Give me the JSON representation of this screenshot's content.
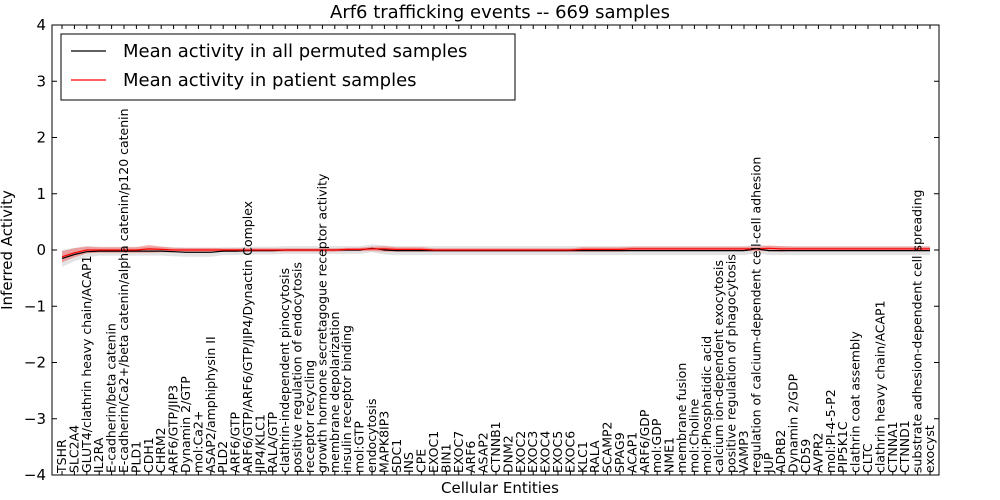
{
  "chart_data": {
    "type": "line",
    "title": "Arf6 trafficking events -- 669 samples",
    "xlabel": "Cellular Entities",
    "ylabel": "Inferred Activity",
    "ylim": [
      -4,
      4
    ],
    "yticks": [
      -4,
      -3,
      -2,
      -1,
      0,
      1,
      2,
      3,
      4
    ],
    "grid": false,
    "legend_position": "top-left",
    "categories": [
      "TSHR",
      "SLC2A4",
      "GLUT4/clathrin heavy chain/ACAP1",
      "IL2RA",
      "E-cadherin/beta catenin",
      "E-cadherin/Ca2+/beta catenin/alpha catenin/p120 catenin",
      "PLD1",
      "CDH1",
      "CHRM2",
      "ARF6/GTP/JIP3",
      "Dynamin 2/GTP",
      "mol:Ca2+",
      "ASAP2/amphiphysin II",
      "PLD2",
      "ARF6/GTP",
      "ARF6/GTP/ARF6/GTP/JIP4/Dynactin Complex",
      "JIP4/KLC1",
      "RALA/GTP",
      "clathrin-independent pinocytosis",
      "positive regulation of endocytosis",
      "receptor recycling",
      "growth hormone secretagogue receptor activity",
      "membrane depolarization",
      "insulin receptor binding",
      "mol:GTP",
      "endocytosis",
      "MAPK8IP3",
      "SDC1",
      "INS",
      "CPE",
      "EXOC1",
      "BIN1",
      "EXOC7",
      "ARF6",
      "ASAP2",
      "CTNNB1",
      "DNM2",
      "EXOC2",
      "EXOC3",
      "EXOC4",
      "EXOC5",
      "EXOC6",
      "KLC1",
      "RALA",
      "SCAMP2",
      "SPAG9",
      "ACAP1",
      "ARF6/GDP",
      "mol:GDP",
      "NME1",
      "membrane fusion",
      "mol:Choline",
      "mol:Phosphatidic acid",
      "calcium ion-dependent exocytosis",
      "positive regulation of phagocytosis",
      "VAMP3",
      "regulation of calcium-dependent cell-cell adhesion",
      "JUP",
      "ADRB2",
      "Dynamin 2/GDP",
      "CD59",
      "AVPR2",
      "mol:PI-4-5-P2",
      "PIP5K1C",
      "clathrin coat assembly",
      "CLTC",
      "clathrin heavy chain/ACAP1",
      "CTNNA1",
      "CTNND1",
      "substrate adhesion-dependent cell spreading",
      "exocyst"
    ],
    "series": [
      {
        "name": "Mean activity in all permuted samples",
        "color": "#000000",
        "values": [
          -0.15,
          -0.08,
          -0.03,
          -0.02,
          -0.02,
          -0.02,
          -0.02,
          -0.02,
          -0.02,
          -0.03,
          -0.04,
          -0.04,
          -0.04,
          -0.02,
          -0.02,
          -0.01,
          -0.01,
          -0.01,
          0,
          0,
          0,
          0,
          0,
          0,
          0,
          0.03,
          0,
          -0.01,
          -0.01,
          -0.01,
          -0.01,
          -0.01,
          -0.01,
          -0.01,
          -0.01,
          -0.01,
          -0.01,
          -0.01,
          -0.01,
          -0.01,
          -0.01,
          -0.01,
          -0.01,
          -0.01,
          -0.01,
          -0.01,
          -0.01,
          -0.01,
          -0.01,
          -0.01,
          -0.01,
          -0.01,
          -0.01,
          -0.01,
          -0.01,
          -0.01,
          0.02,
          -0.01,
          -0.01,
          -0.01,
          -0.01,
          -0.01,
          -0.01,
          -0.01,
          -0.01,
          -0.01,
          -0.01,
          -0.01,
          -0.01,
          -0.01,
          -0.01
        ],
        "band": [
          0.15,
          0.12,
          0.1,
          0.08,
          0.08,
          0.08,
          0.08,
          0.08,
          0.08,
          0.08,
          0.08,
          0.08,
          0.08,
          0.07,
          0.07,
          0.07,
          0.07,
          0.07,
          0.07,
          0.07,
          0.07,
          0.07,
          0.07,
          0.07,
          0.07,
          0.07,
          0.08,
          0.08,
          0.08,
          0.08,
          0.08,
          0.08,
          0.08,
          0.08,
          0.08,
          0.08,
          0.08,
          0.08,
          0.08,
          0.08,
          0.08,
          0.08,
          0.08,
          0.08,
          0.08,
          0.08,
          0.08,
          0.08,
          0.08,
          0.08,
          0.08,
          0.08,
          0.08,
          0.08,
          0.08,
          0.08,
          0.08,
          0.08,
          0.08,
          0.08,
          0.08,
          0.08,
          0.08,
          0.08,
          0.08,
          0.08,
          0.08,
          0.08,
          0.08,
          0.08,
          0.08
        ]
      },
      {
        "name": "Mean activity in patient samples",
        "color": "#ff0000",
        "values": [
          -0.12,
          -0.05,
          0,
          0,
          0,
          0,
          0,
          0.02,
          0.01,
          0,
          0,
          0,
          0,
          0,
          0,
          0,
          0,
          0,
          0,
          0,
          0,
          0,
          0,
          0.01,
          0.01,
          0.02,
          0.02,
          0.01,
          0.01,
          0.01,
          0,
          0,
          0,
          0,
          0,
          0,
          0,
          0,
          0,
          0,
          0,
          0,
          0.01,
          0.01,
          0.01,
          0.01,
          0.02,
          0.02,
          0.02,
          0.02,
          0.02,
          0.02,
          0.02,
          0.02,
          0.02,
          0.02,
          0.02,
          0.03,
          0.02,
          0.02,
          0.02,
          0.02,
          0.02,
          0.02,
          0.02,
          0.02,
          0.02,
          0.02,
          0.02,
          0.02,
          0.02
        ],
        "band": [
          0.1,
          0.08,
          0.06,
          0.05,
          0.05,
          0.05,
          0.05,
          0.07,
          0.05,
          0.04,
          0.04,
          0.04,
          0.04,
          0.03,
          0.03,
          0.03,
          0.03,
          0.03,
          0.03,
          0.03,
          0.03,
          0.03,
          0.03,
          0.03,
          0.03,
          0.04,
          0.05,
          0.04,
          0.04,
          0.04,
          0.03,
          0.03,
          0.03,
          0.03,
          0.03,
          0.03,
          0.03,
          0.03,
          0.03,
          0.03,
          0.03,
          0.03,
          0.04,
          0.04,
          0.04,
          0.04,
          0.04,
          0.04,
          0.04,
          0.04,
          0.04,
          0.04,
          0.04,
          0.04,
          0.04,
          0.04,
          0.04,
          0.05,
          0.05,
          0.04,
          0.04,
          0.04,
          0.04,
          0.04,
          0.04,
          0.04,
          0.04,
          0.04,
          0.04,
          0.04,
          0.04
        ]
      }
    ]
  }
}
